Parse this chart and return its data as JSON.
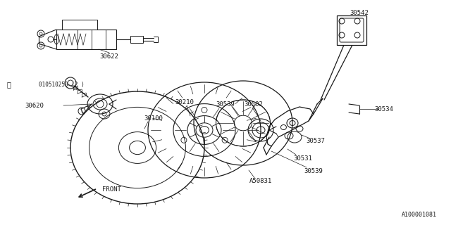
{
  "bg_color": "#ffffff",
  "line_color": "#1a1a1a",
  "text_color": "#1a1a1a",
  "fig_width": 6.4,
  "fig_height": 3.2,
  "dpi": 100,
  "footer": "A100001081"
}
